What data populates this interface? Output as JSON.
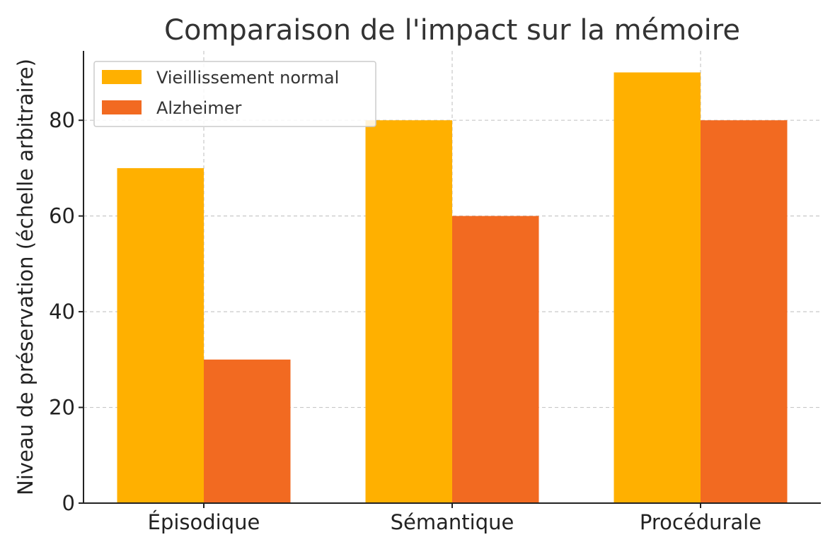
{
  "chart_data": {
    "type": "bar",
    "title": "Comparaison de l'impact sur la mémoire",
    "xlabel": "",
    "ylabel": "Niveau de préservation (échelle arbitraire)",
    "categories": [
      "Épisodique",
      "Sémantique",
      "Procédurale"
    ],
    "series": [
      {
        "name": "Vieillissement normal",
        "values": [
          70,
          80,
          90
        ],
        "color": "#FFB000"
      },
      {
        "name": "Alzheimer",
        "values": [
          30,
          60,
          80
        ],
        "color": "#F26A21"
      }
    ],
    "ylim": [
      0,
      94.5
    ],
    "yticks": [
      0,
      20,
      40,
      60,
      80
    ],
    "grid": true,
    "legend_position": "top-left"
  }
}
